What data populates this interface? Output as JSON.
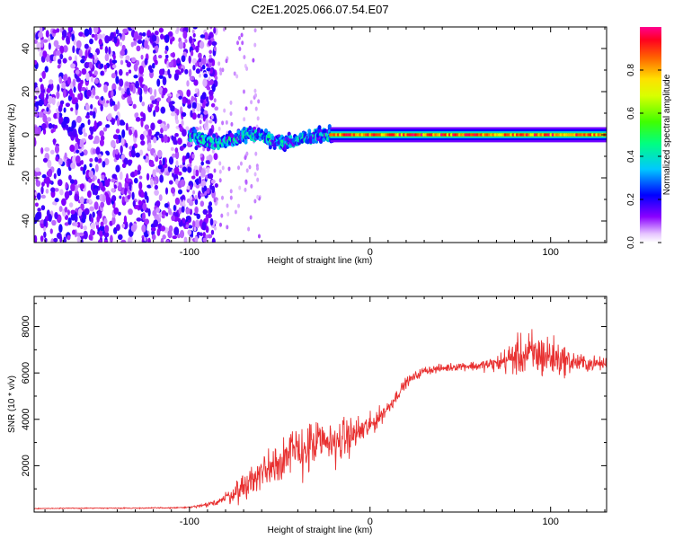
{
  "title": "C2E1.2025.066.07.54.E07",
  "chart_data": [
    {
      "type": "heatmap",
      "xlabel": "Height of straight line (km)",
      "ylabel": "Frequency (Hz)",
      "xlim": [
        -186,
        131
      ],
      "ylim": [
        -50,
        50
      ],
      "x_ticks": [
        -100,
        0,
        100
      ],
      "y_ticks": [
        -40,
        -20,
        0,
        20,
        40
      ],
      "grid": false,
      "colorbar": {
        "label": "Normalized spectral amplitude",
        "range": [
          0.0,
          1.0
        ],
        "ticks": [
          0.0,
          0.2,
          0.4,
          0.6,
          0.8
        ]
      },
      "regions": [
        {
          "x_range": [
            -186,
            -85
          ],
          "description_values": {
            "amplitude_range": [
              0.05,
              0.25
            ],
            "frequency_span": [
              -50,
              50
            ]
          }
        },
        {
          "x_range": [
            -85,
            -20
          ],
          "frequency_center": 0,
          "frequency_spread": 10,
          "amplitude_range": [
            0.1,
            0.5
          ]
        },
        {
          "x_range": [
            -20,
            131
          ],
          "frequency_center": 0,
          "frequency_spread": 3,
          "amplitude_range": [
            0.5,
            1.0
          ]
        }
      ]
    },
    {
      "type": "line",
      "xlabel": "Height of straight line (km)",
      "ylabel": "SNR (10 * v/v)",
      "xlim": [
        -186,
        131
      ],
      "ylim": [
        0,
        9300
      ],
      "x_ticks": [
        -100,
        0,
        100
      ],
      "y_ticks": [
        2000,
        4000,
        6000,
        8000
      ],
      "grid": false,
      "series": [
        {
          "color": "#e83030",
          "x": [
            -186,
            -170,
            -150,
            -130,
            -110,
            -100,
            -90,
            -80,
            -70,
            -60,
            -50,
            -40,
            -30,
            -20,
            -10,
            0,
            10,
            20,
            30,
            40,
            50,
            60,
            70,
            80,
            90,
            100,
            110,
            120,
            131
          ],
          "y": [
            150,
            160,
            170,
            170,
            180,
            200,
            300,
            600,
            1100,
            1700,
            2300,
            2600,
            2900,
            3000,
            3300,
            3700,
            4500,
            5600,
            6100,
            6200,
            6300,
            6300,
            6400,
            6700,
            6800,
            6700,
            6500,
            6400,
            6400
          ],
          "noise_amplitude": [
            20,
            20,
            20,
            25,
            30,
            40,
            120,
            300,
            700,
            1000,
            1200,
            1300,
            1300,
            1100,
            900,
            600,
            350,
            250,
            200,
            200,
            200,
            250,
            400,
            900,
            1200,
            1100,
            600,
            400,
            300
          ]
        }
      ]
    }
  ]
}
